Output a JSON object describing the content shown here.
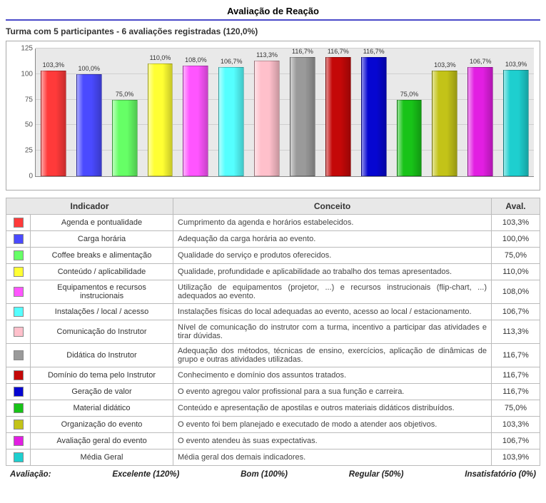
{
  "title": "Avaliação de Reação",
  "subtitle": "Turma com 5 participantes - 6 avaliações registradas (120,0%)",
  "chart": {
    "type": "bar",
    "ymax": 125,
    "ytick_step": 25,
    "yticks": [
      0,
      25,
      50,
      75,
      100,
      125
    ],
    "background_color": "#e9e9e9",
    "grid_color": "#cfcfcf",
    "label_fontsize": 9
  },
  "table_headers": {
    "indicador": "Indicador",
    "conceito": "Conceito",
    "aval": "Aval."
  },
  "rows": [
    {
      "color": "#ff3a3a",
      "indicador": "Agenda e pontualidade",
      "conceito": "Cumprimento da agenda e horários estabelecidos.",
      "value": 103.3,
      "value_label": "103,3%"
    },
    {
      "color": "#4a4aff",
      "indicador": "Carga horária",
      "conceito": "Adequação da carga horária ao evento.",
      "value": 100.0,
      "value_label": "100,0%"
    },
    {
      "color": "#66ff66",
      "indicador": "Coffee breaks e alimentação",
      "conceito": "Qualidade do serviço e produtos oferecidos.",
      "value": 75.0,
      "value_label": "75,0%"
    },
    {
      "color": "#ffff33",
      "indicador": "Conteúdo / aplicabilidade",
      "conceito": "Qualidade, profundidade e aplicabilidade ao trabalho dos temas apresentados.",
      "value": 110.0,
      "value_label": "110,0%"
    },
    {
      "color": "#ff55ff",
      "indicador": "Equipamentos e recursos instrucionais",
      "conceito": "Utilização de equipamentos (projetor, ...) e recursos instrucionais (flip-chart, ...) adequados ao evento.",
      "value": 108.0,
      "value_label": "108,0%"
    },
    {
      "color": "#55ffff",
      "indicador": "Instalações / local / acesso",
      "conceito": "Instalações físicas do local adequadas ao evento, acesso ao local / estacionamento.",
      "value": 106.7,
      "value_label": "106,7%"
    },
    {
      "color": "#ffc0cb",
      "indicador": "Comunicação do Instrutor",
      "conceito": "Nível de comunicação do instrutor com a turma, incentivo a participar das atividades e tirar dúvidas.",
      "value": 113.3,
      "value_label": "113,3%"
    },
    {
      "color": "#9a9a9a",
      "indicador": "Didática do Instrutor",
      "conceito": "Adequação dos métodos, técnicas de ensino, exercícios, aplicação de dinâmicas de grupo e outras atividades utilizadas.",
      "value": 116.7,
      "value_label": "116,7%"
    },
    {
      "color": "#c40808",
      "indicador": "Domínio do tema pelo Instrutor",
      "conceito": "Conhecimento e domínio dos assuntos tratados.",
      "value": 116.7,
      "value_label": "116,7%"
    },
    {
      "color": "#0606d1",
      "indicador": "Geração de valor",
      "conceito": "O evento agregou valor profissional para a sua função e carreira.",
      "value": 116.7,
      "value_label": "116,7%"
    },
    {
      "color": "#18c318",
      "indicador": "Material didático",
      "conceito": "Conteúdo e apresentação de apostilas e outros materiais didáticos distribuídos.",
      "value": 75.0,
      "value_label": "75,0%"
    },
    {
      "color": "#c3c318",
      "indicador": "Organização do evento",
      "conceito": "O evento foi bem planejado e executado de modo a atender aos objetivos.",
      "value": 103.3,
      "value_label": "103,3%"
    },
    {
      "color": "#e21ee2",
      "indicador": "Avaliação geral do evento",
      "conceito": "O evento atendeu às suas expectativas.",
      "value": 106.7,
      "value_label": "106,7%"
    },
    {
      "color": "#1ecfcf",
      "indicador": "Média Geral",
      "conceito": "Média geral dos demais indicadores.",
      "value": 103.9,
      "value_label": "103,9%"
    }
  ],
  "footer": {
    "label": "Avaliação:",
    "levels": [
      "Excelente (120%)",
      "Bom (100%)",
      "Regular (50%)",
      "Insatisfatório (0%)"
    ]
  }
}
